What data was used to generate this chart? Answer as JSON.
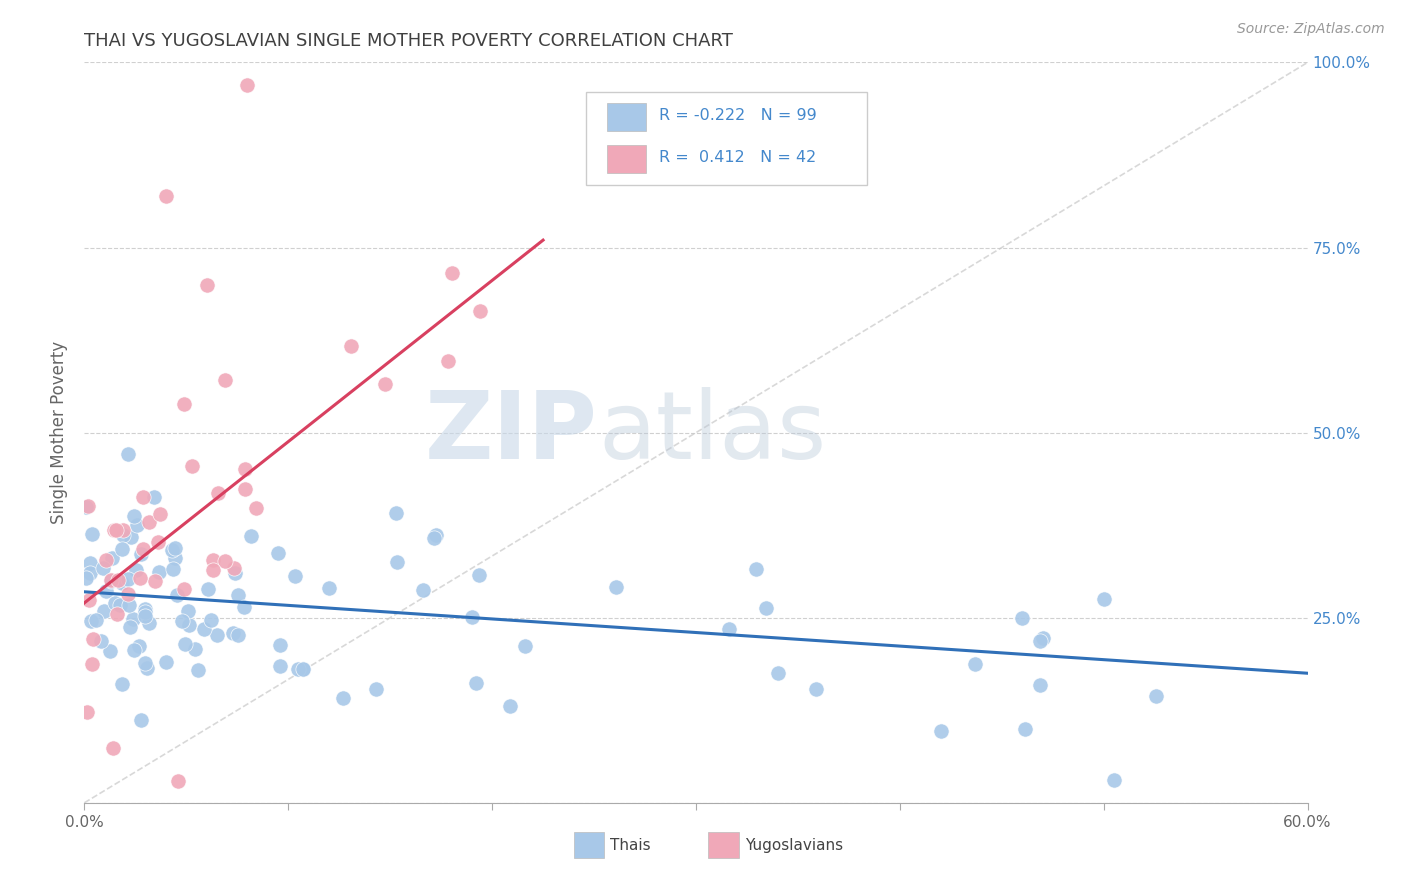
{
  "title": "THAI VS YUGOSLAVIAN SINGLE MOTHER POVERTY CORRELATION CHART",
  "source": "Source: ZipAtlas.com",
  "ylabel": "Single Mother Poverty",
  "thai_R": -0.222,
  "thai_N": 99,
  "yugo_R": 0.412,
  "yugo_N": 42,
  "thai_color": "#a8c8e8",
  "yugo_color": "#f0a8b8",
  "thai_line_color": "#3070b8",
  "yugo_line_color": "#d84060",
  "diagonal_color": "#c8c8c8",
  "background_color": "#ffffff",
  "grid_color": "#d0d0d0",
  "right_axis_color": "#4488cc",
  "title_color": "#404040",
  "watermark_zip": "ZIP",
  "watermark_atlas": "atlas",
  "xlim": [
    0.0,
    0.6
  ],
  "ylim": [
    0.0,
    1.0
  ],
  "yticks": [
    0.0,
    0.25,
    0.5,
    0.75,
    1.0
  ],
  "ytick_labels": [
    "",
    "25.0%",
    "50.0%",
    "75.0%",
    "100.0%"
  ],
  "xticks": [
    0.0,
    0.1,
    0.2,
    0.3,
    0.4,
    0.5,
    0.6
  ],
  "xtick_labels": [
    "0.0%",
    "",
    "",
    "",
    "",
    "",
    "60.0%"
  ],
  "thai_line_x": [
    0.0,
    0.6
  ],
  "thai_line_y": [
    0.285,
    0.175
  ],
  "yugo_line_x": [
    0.0,
    0.225
  ],
  "yugo_line_y": [
    0.27,
    0.76
  ]
}
